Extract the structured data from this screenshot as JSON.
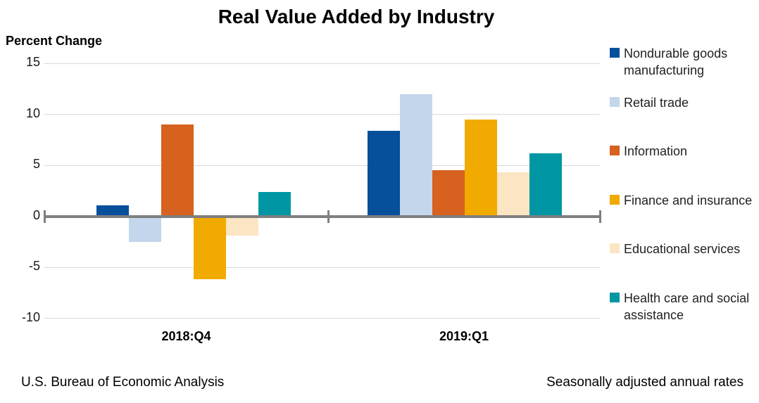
{
  "chart_data": {
    "type": "bar",
    "title": "Real Value Added by Industry",
    "ylabel": "Percent Change",
    "xlabel": "",
    "categories": [
      "2018:Q4",
      "2019:Q1"
    ],
    "series": [
      {
        "name": "Nondurable goods manufacturing",
        "color": "#064F9B",
        "values": [
          1.1,
          8.4
        ]
      },
      {
        "name": "Retail trade",
        "color": "#C3D6EB",
        "values": [
          -2.5,
          12.0
        ]
      },
      {
        "name": "Information",
        "color": "#D7611F",
        "values": [
          9.0,
          4.5
        ]
      },
      {
        "name": "Finance and insurance",
        "color": "#F1AA00",
        "values": [
          -6.2,
          9.5
        ]
      },
      {
        "name": "Educational services",
        "color": "#FBE5C3",
        "values": [
          -1.9,
          4.3
        ]
      },
      {
        "name": "Health care and social assistance",
        "color": "#0096A3",
        "values": [
          2.4,
          6.2
        ]
      }
    ],
    "yticks": [
      15,
      10,
      5,
      0,
      -5,
      -10
    ],
    "ylim": [
      -10,
      15
    ],
    "grid": "horizontal",
    "gridline_color": "#D9D9D9",
    "axis_color": "#7F7F7F",
    "legend_position": "right",
    "footer_left": "U.S. Bureau of Economic Analysis",
    "footer_right": "Seasonally adjusted annual rates"
  }
}
